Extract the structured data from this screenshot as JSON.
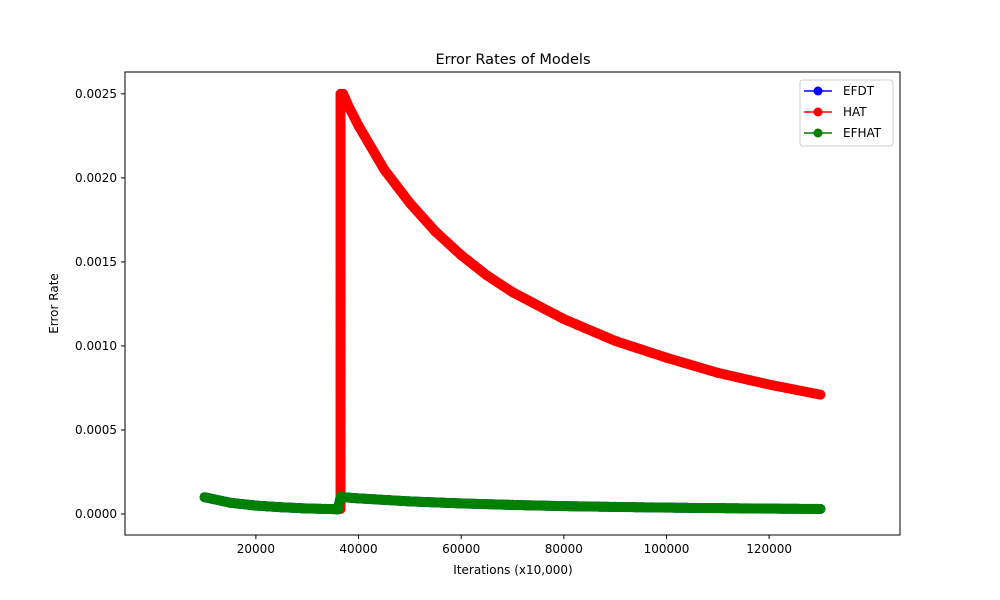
{
  "chart_data": {
    "type": "line",
    "title": "Error Rates of Models",
    "xlabel": "Iterations (x10,000)",
    "ylabel": "Error Rate",
    "xlim": [
      -5500,
      145500
    ],
    "ylim": [
      -0.000125,
      0.00263
    ],
    "xticks": [
      20000,
      40000,
      60000,
      80000,
      100000,
      120000
    ],
    "yticks": [
      0.0,
      0.0005,
      0.001,
      0.0015,
      0.002,
      0.0025
    ],
    "xtick_labels": [
      "20000",
      "40000",
      "60000",
      "80000",
      "100000",
      "120000"
    ],
    "ytick_labels": [
      "0.0000",
      "0.0005",
      "0.0010",
      "0.0015",
      "0.0020",
      "0.0025"
    ],
    "grid": false,
    "legend_position": "top-right",
    "marker": "circle",
    "series": [
      {
        "name": "EFDT",
        "color": "#0000ff",
        "x": [
          10000,
          15000,
          20000,
          25000,
          30000,
          35000,
          36000,
          36500,
          40000,
          50000,
          60000,
          70000,
          80000,
          90000,
          100000,
          110000,
          120000,
          130000
        ],
        "y": [
          0.0001,
          6.7e-05,
          5e-05,
          4e-05,
          3.3e-05,
          2.9e-05,
          2.8e-05,
          0.000101,
          9.3e-05,
          7.5e-05,
          6.3e-05,
          5.4e-05,
          4.7e-05,
          4.2e-05,
          3.8e-05,
          3.5e-05,
          3.2e-05,
          3e-05
        ]
      },
      {
        "name": "HAT",
        "color": "#ff0000",
        "x": [
          36500,
          36500,
          37000,
          38000,
          40000,
          45000,
          50000,
          55000,
          60000,
          65000,
          70000,
          80000,
          90000,
          100000,
          110000,
          120000,
          130000
        ],
        "y": [
          3e-05,
          0.0025,
          0.0025,
          0.00243,
          0.00231,
          0.00205,
          0.00185,
          0.00168,
          0.00154,
          0.00142,
          0.00132,
          0.00116,
          0.00103,
          0.00093,
          0.00084,
          0.00077,
          0.00071
        ]
      },
      {
        "name": "EFHAT",
        "color": "#008000",
        "x": [
          10000,
          15000,
          20000,
          25000,
          30000,
          35000,
          36000,
          36500,
          40000,
          50000,
          60000,
          70000,
          80000,
          90000,
          100000,
          110000,
          120000,
          130000
        ],
        "y": [
          0.0001,
          6.7e-05,
          5e-05,
          4e-05,
          3.3e-05,
          2.9e-05,
          2.8e-05,
          0.000101,
          9.3e-05,
          7.5e-05,
          6.3e-05,
          5.4e-05,
          4.7e-05,
          4.2e-05,
          3.8e-05,
          3.5e-05,
          3.2e-05,
          3e-05
        ]
      }
    ]
  }
}
